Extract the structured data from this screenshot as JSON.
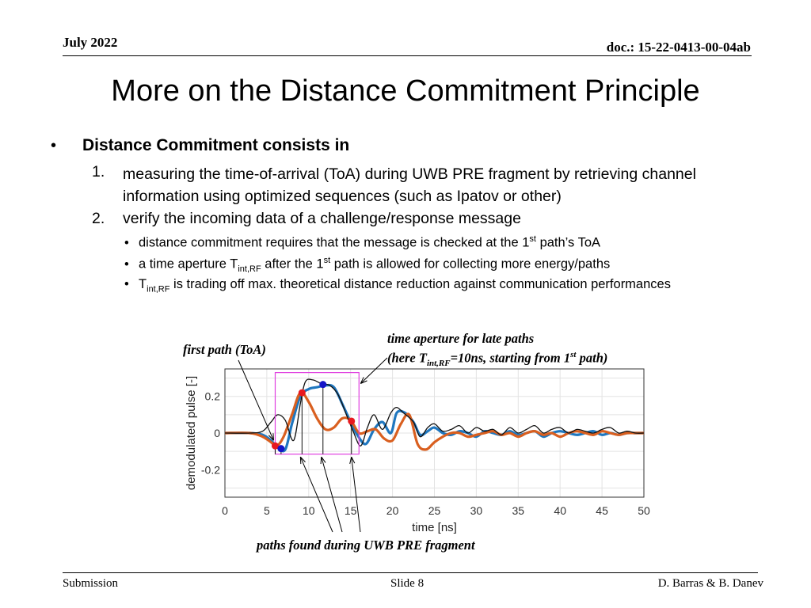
{
  "header": {
    "date": "July 2022",
    "doc": "doc.: 15-22-0413-00-04ab"
  },
  "title": "More on the Distance Commitment Principle",
  "bullet1": "Distance Commitment consists in",
  "items": [
    {
      "num": "1.",
      "text": "measuring the time-of-arrival (ToA) during UWB PRE fragment by retrieving channel information using optimized sequences (such as Ipatov or other)"
    },
    {
      "num": "2.",
      "text": "verify the incoming data of a challenge/response message"
    }
  ],
  "subbullets": {
    "s1": {
      "a": "distance commitment requires that the message is checked at the 1",
      "sup": "st",
      "b": " path’s ToA"
    },
    "s2": {
      "a": "a time aperture T",
      "sub": "int,RF",
      "b": " after the 1",
      "sup": "st",
      "c": " path is allowed for collecting more energy/paths"
    },
    "s3": {
      "a": "T",
      "sub": "int,RF",
      "b": "  is trading off max. theoretical distance reduction against communication performances"
    }
  },
  "annotations": {
    "first_path": "first path (ToA)",
    "aperture_line1": "time aperture for late paths",
    "aperture_line2a": "(here T",
    "aperture_line2_sub": "int,RF",
    "aperture_line2b": "=10ns, starting from 1",
    "aperture_line2_sup": "st",
    "aperture_line2c": " path)",
    "paths_found": "paths found during UWB PRE fragment"
  },
  "chart_data": {
    "type": "line",
    "xlabel": "time [ns]",
    "ylabel": "demodulated pulse [-]",
    "xlim": [
      0,
      50
    ],
    "ylim": [
      -0.35,
      0.35
    ],
    "xticks": [
      0,
      5,
      10,
      15,
      20,
      25,
      30,
      35,
      40,
      45,
      50
    ],
    "yticks": [
      0.2,
      0,
      -0.2
    ],
    "ytick_labels": [
      "0.2",
      "0",
      "-0.2"
    ],
    "grid": true,
    "colors": {
      "black": "#111111",
      "blue": "#1f77bf",
      "orange": "#d95f1f",
      "box": "#e040e0",
      "red_marker": "#e8191f",
      "blue_marker": "#1515c8"
    },
    "series": [
      {
        "color": "black",
        "x": [
          0,
          3,
          4.5,
          5.5,
          6.3,
          7.2,
          8.2,
          9.0,
          9.6,
          10.5,
          11.5,
          12.5,
          13.5,
          14.5,
          15.3,
          16.2,
          17.0,
          17.8,
          18.8,
          19.8,
          20.5,
          21.3,
          22.5,
          23.3,
          24.2,
          25.0,
          26.0,
          27.0,
          28.0,
          29.0,
          30.0,
          31.0,
          32.0,
          33.0,
          34.0,
          35.0,
          36.0,
          37.0,
          38.0,
          39.0,
          40.0,
          41.0,
          42.0,
          43.0,
          44.0,
          45.0,
          46.0,
          47.0,
          48.0,
          49.0,
          50.0
        ],
        "y": [
          0,
          0,
          0.01,
          0.06,
          0.1,
          0.07,
          -0.04,
          0.16,
          0.28,
          0.29,
          0.27,
          0.26,
          0.21,
          0.1,
          0.01,
          -0.07,
          0.03,
          0.1,
          0.02,
          0.11,
          0.14,
          0.11,
          0.06,
          -0.02,
          0.03,
          0.05,
          0.01,
          0.02,
          0.04,
          0.0,
          0.03,
          0.01,
          0.02,
          -0.01,
          0.03,
          0.0,
          0.02,
          0.04,
          0.0,
          0.02,
          0.03,
          0.0,
          0.02,
          0.01,
          0.0,
          0.02,
          0.03,
          0.0,
          0.01,
          0.0,
          0.0
        ]
      },
      {
        "color": "blue",
        "x": [
          0,
          3,
          4.5,
          5.5,
          6.3,
          7.2,
          8.0,
          9.0,
          10.0,
          11.0,
          12.0,
          13.0,
          14.0,
          15.0,
          15.8,
          16.8,
          17.8,
          18.8,
          19.8,
          20.5,
          21.5,
          22.5,
          23.3,
          24.2,
          25.0,
          26.0,
          27.0,
          28.0,
          29.0,
          30.0,
          31.0,
          32.0,
          33.0,
          34.0,
          35.0,
          36.0,
          37.0,
          38.0,
          39.0,
          40.0,
          41.0,
          42.0,
          43.0,
          44.0,
          45.0,
          46.0,
          47.0,
          48.0,
          49.0,
          50.0
        ],
        "y": [
          0,
          0,
          -0.01,
          -0.04,
          -0.08,
          -0.09,
          0.05,
          0.2,
          0.24,
          0.25,
          0.26,
          0.25,
          0.16,
          0.06,
          -0.01,
          -0.06,
          0.02,
          0.06,
          0.0,
          0.11,
          0.11,
          0.06,
          -0.01,
          0.01,
          0.03,
          0.0,
          -0.01,
          0.01,
          0.0,
          -0.02,
          0.01,
          0.0,
          -0.01,
          0.01,
          -0.01,
          0.0,
          0.01,
          -0.02,
          0.0,
          0.01,
          0.0,
          -0.01,
          0.0,
          0.01,
          -0.01,
          0.0,
          -0.01,
          0.0,
          0.0,
          0.0
        ]
      },
      {
        "color": "orange",
        "x": [
          0,
          3,
          4.5,
          5.5,
          6.2,
          7.0,
          8.0,
          9.0,
          10.0,
          11.0,
          12.0,
          13.0,
          14.0,
          15.0,
          16.0,
          17.0,
          18.0,
          19.0,
          20.0,
          21.0,
          22.0,
          23.0,
          24.0,
          25.0,
          26.0,
          27.0,
          28.0,
          29.0,
          30.0,
          31.0,
          32.0,
          33.0,
          34.0,
          35.0,
          36.0,
          37.0,
          38.0,
          39.0,
          40.0,
          41.0,
          42.0,
          43.0,
          44.0,
          45.0,
          46.0,
          47.0,
          48.0,
          49.0,
          50.0
        ],
        "y": [
          0,
          0,
          -0.02,
          -0.05,
          -0.07,
          -0.02,
          0.1,
          0.22,
          0.17,
          0.08,
          0.02,
          0.03,
          0.08,
          0.07,
          0.0,
          0.01,
          0.02,
          -0.03,
          -0.04,
          0.05,
          0.1,
          -0.06,
          -0.09,
          -0.05,
          -0.02,
          0.0,
          0.0,
          -0.02,
          -0.01,
          0.0,
          0.01,
          -0.01,
          0.0,
          -0.02,
          0.0,
          0.01,
          -0.01,
          0.0,
          -0.02,
          0.0,
          0.01,
          0.0,
          -0.01,
          0.01,
          0.0,
          -0.01,
          0.0,
          0.0,
          0.0
        ]
      }
    ],
    "markers": [
      {
        "x": 6.0,
        "y": -0.07,
        "color": "red_marker"
      },
      {
        "x": 6.7,
        "y": -0.085,
        "color": "blue_marker"
      },
      {
        "x": 9.2,
        "y": 0.22,
        "color": "red_marker"
      },
      {
        "x": 11.7,
        "y": 0.265,
        "color": "blue_marker"
      },
      {
        "x": 15.1,
        "y": 0.065,
        "color": "red_marker"
      }
    ],
    "stems_x": [
      6.0,
      6.7,
      9.2,
      11.7,
      15.1
    ],
    "aperture": {
      "x0": 6.0,
      "x1": 16.0,
      "y0": -0.115,
      "y1": 0.33
    }
  },
  "footer": {
    "left": "Submission",
    "mid": "Slide 8",
    "right": "D. Barras & B. Danev"
  }
}
